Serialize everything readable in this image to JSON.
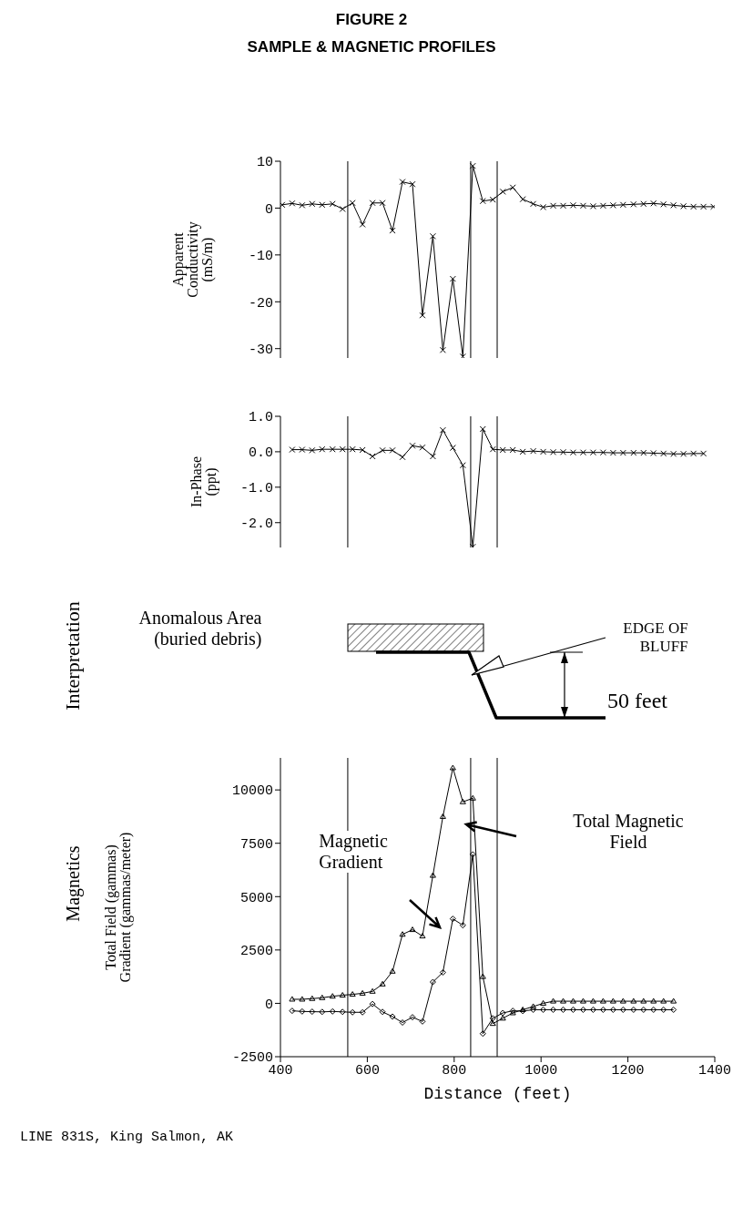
{
  "chart_data": [
    {
      "type": "line",
      "title": "FIGURE 2",
      "subtitle": "SAMPLE & MAGNETIC PROFILES",
      "ylabel": "Apparent\nConductivity\n(mS/m)",
      "xlim": [
        400,
        1400
      ],
      "ylim": [
        -32,
        10
      ],
      "yticks": [
        10,
        0,
        -10,
        -20,
        -30
      ],
      "tick_labels": "y",
      "ref_lines": [
        {
          "axis": "x",
          "value": 555
        },
        {
          "axis": "x",
          "value": 838
        },
        {
          "axis": "x",
          "value": 899
        }
      ],
      "series": [
        {
          "color": "#000000",
          "marker": "cross",
          "x": [
            404,
            427,
            450,
            473,
            496,
            520,
            543,
            566,
            589,
            612,
            635,
            658,
            681,
            704,
            727,
            751,
            774,
            797,
            820,
            843,
            866,
            889,
            912,
            935,
            958,
            982,
            1005,
            1028,
            1051,
            1074,
            1097,
            1120,
            1143,
            1166,
            1189,
            1213,
            1236,
            1259,
            1282,
            1305,
            1328,
            1351,
            1374,
            1397
          ],
          "values": [
            0.7,
            1.0,
            0.6,
            0.9,
            0.7,
            0.9,
            -0.2,
            1.1,
            -3.5,
            1.1,
            1.1,
            -4.8,
            5.6,
            5.1,
            -22.9,
            -6.0,
            -30.3,
            -15.1,
            -31.7,
            9.0,
            1.5,
            1.8,
            3.5,
            4.4,
            1.9,
            0.9,
            0.2,
            0.5,
            0.5,
            0.6,
            0.5,
            0.4,
            0.5,
            0.6,
            0.7,
            0.8,
            0.9,
            1.0,
            0.8,
            0.6,
            0.4,
            0.3,
            0.3,
            0.3
          ]
        }
      ]
    },
    {
      "type": "line",
      "ylabel": "In-Phase\n(ppt)",
      "xlim": [
        400,
        1400
      ],
      "ylim": [
        -2.7,
        1.0
      ],
      "yticks": [
        {
          "value": 1,
          "label": "1.0"
        },
        {
          "value": 0,
          "label": "0.0"
        },
        {
          "value": -1,
          "label": "-1.0"
        },
        {
          "value": -2,
          "label": "-2.0"
        }
      ],
      "tick_labels": "y",
      "ref_lines": [
        {
          "axis": "x",
          "value": 555
        },
        {
          "axis": "x",
          "value": 838
        },
        {
          "axis": "x",
          "value": 899
        }
      ],
      "series": [
        {
          "color": "#000000",
          "marker": "cross",
          "x": [
            427,
            450,
            473,
            496,
            520,
            543,
            566,
            589,
            612,
            635,
            658,
            681,
            704,
            727,
            751,
            774,
            797,
            820,
            843,
            866,
            889,
            912,
            935,
            958,
            982,
            1005,
            1028,
            1051,
            1074,
            1097,
            1120,
            1143,
            1166,
            1189,
            1213,
            1236,
            1259,
            1282,
            1305,
            1328,
            1351,
            1374
          ],
          "values": [
            0.06,
            0.06,
            0.04,
            0.07,
            0.07,
            0.07,
            0.07,
            0.05,
            -0.13,
            0.04,
            0.04,
            -0.15,
            0.17,
            0.12,
            -0.13,
            0.61,
            0.11,
            -0.38,
            -2.68,
            0.64,
            0.07,
            0.05,
            0.05,
            0.0,
            0.02,
            0.0,
            -0.01,
            -0.01,
            -0.02,
            -0.02,
            -0.02,
            -0.02,
            -0.03,
            -0.03,
            -0.03,
            -0.03,
            -0.04,
            -0.05,
            -0.06,
            -0.06,
            -0.05,
            -0.05
          ]
        }
      ]
    },
    {
      "type": "other",
      "annotations": [
        "Interpretation",
        "Anomalous Area\n(buried debris)",
        "EDGE OF\nBLUFF",
        "50 feet"
      ]
    },
    {
      "type": "line",
      "ylabel": "Total Field (gammas)\nGradient (gammas/meter)",
      "xlabel": "Distance (feet)",
      "xlim": [
        400,
        1400
      ],
      "xticks": [
        400,
        600,
        800,
        1000,
        1200,
        1400
      ],
      "ylim": [
        -2500,
        11500
      ],
      "yticks": [
        -2500,
        0,
        2500,
        5000,
        7500,
        10000
      ],
      "ref_lines": [
        {
          "axis": "x",
          "value": 555
        },
        {
          "axis": "x",
          "value": 838
        },
        {
          "axis": "x",
          "value": 899
        }
      ],
      "annotations": [
        "Total Magnetic\nField",
        "Magnetic\nGradient",
        "Magnetics",
        "LINE 831S, King Salmon, AK"
      ],
      "series": [
        {
          "color": "#000000",
          "marker": "triangle",
          "x": [
            427,
            450,
            473,
            496,
            520,
            543,
            566,
            589,
            612,
            635,
            658,
            681,
            704,
            727,
            751,
            774,
            797,
            820,
            843,
            866,
            889,
            912,
            935,
            958,
            982,
            1005,
            1028,
            1051,
            1074,
            1097,
            1120,
            1143,
            1166,
            1189,
            1213,
            1236,
            1259,
            1282,
            1305
          ],
          "values": [
            190,
            190,
            220,
            260,
            330,
            380,
            420,
            470,
            560,
            900,
            1500,
            3230,
            3450,
            3150,
            5990,
            8750,
            11030,
            9440,
            9610,
            1250,
            -950,
            -700,
            -450,
            -300,
            -150,
            0,
            100,
            100,
            100,
            100,
            100,
            100,
            100,
            100,
            100,
            100,
            100,
            100,
            100
          ]
        },
        {
          "color": "#000000",
          "marker": "diamond",
          "x": [
            427,
            450,
            473,
            496,
            520,
            543,
            566,
            589,
            612,
            635,
            658,
            681,
            704,
            727,
            751,
            774,
            797,
            820,
            843,
            866,
            889,
            912,
            935,
            958,
            982,
            1005,
            1028,
            1051,
            1074,
            1097,
            1120,
            1143,
            1166,
            1189,
            1213,
            1236,
            1259,
            1282,
            1305
          ],
          "values": [
            -350,
            -380,
            -390,
            -400,
            -380,
            -400,
            -420,
            -420,
            -30,
            -400,
            -620,
            -900,
            -650,
            -850,
            1000,
            1450,
            3960,
            3660,
            6980,
            -1420,
            -700,
            -450,
            -350,
            -360,
            -300,
            -300,
            -300,
            -300,
            -300,
            -300,
            -300,
            -300,
            -300,
            -300,
            -300,
            -300,
            -300,
            -300,
            -300
          ]
        }
      ]
    }
  ]
}
